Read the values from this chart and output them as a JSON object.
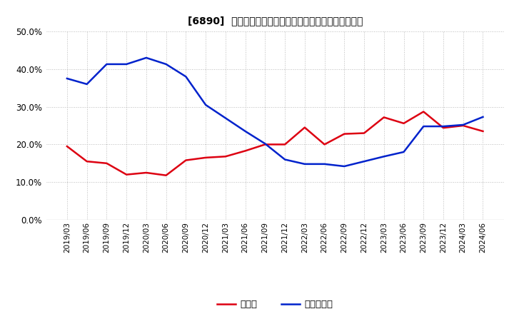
{
  "title": "[6890]  現預金、有利子負債の総資産に対する比率の推移",
  "x_labels": [
    "2019/03",
    "2019/06",
    "2019/09",
    "2019/12",
    "2020/03",
    "2020/06",
    "2020/09",
    "2020/12",
    "2021/03",
    "2021/06",
    "2021/09",
    "2021/12",
    "2022/03",
    "2022/06",
    "2022/09",
    "2022/12",
    "2023/03",
    "2023/06",
    "2023/09",
    "2023/12",
    "2024/03",
    "2024/06"
  ],
  "cash": [
    0.195,
    0.155,
    0.15,
    0.12,
    0.125,
    0.118,
    0.158,
    0.165,
    0.168,
    0.183,
    0.2,
    0.2,
    0.245,
    0.2,
    0.228,
    0.23,
    0.272,
    0.256,
    0.287,
    0.244,
    0.25,
    0.235
  ],
  "debt": [
    0.375,
    0.36,
    0.413,
    0.413,
    0.43,
    0.413,
    0.38,
    0.305,
    0.27,
    0.235,
    0.202,
    0.16,
    0.148,
    0.148,
    0.142,
    0.155,
    0.168,
    0.18,
    0.248,
    0.248,
    0.252,
    0.273
  ],
  "cash_color": "#dd0011",
  "debt_color": "#0022cc",
  "background_color": "#ffffff",
  "grid_color": "#bbbbbb",
  "ylim": [
    0.0,
    0.5
  ],
  "yticks": [
    0.0,
    0.1,
    0.2,
    0.3,
    0.4,
    0.5
  ],
  "legend_cash": "現預金",
  "legend_debt": "有利子負債"
}
